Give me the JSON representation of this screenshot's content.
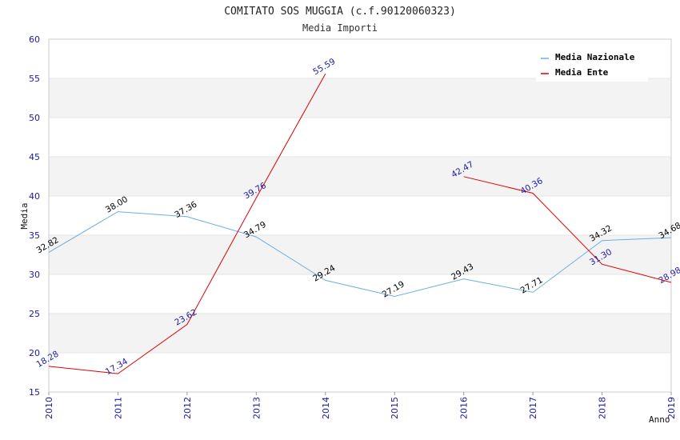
{
  "chart_data": {
    "type": "line",
    "title": "COMITATO SOS MUGGIA (c.f.90120060323)",
    "subtitle": "Media Importi",
    "xlabel": "Anno",
    "ylabel": "Media",
    "ylim": [
      15,
      60
    ],
    "yticks": [
      "15",
      "20",
      "25",
      "30",
      "35",
      "40",
      "45",
      "50",
      "55",
      "60"
    ],
    "grid": true,
    "legend_position": "top-right",
    "x": [
      "2010",
      "2011",
      "2012",
      "2013",
      "2014",
      "2015",
      "2016",
      "2017",
      "2018",
      "2019"
    ],
    "series": [
      {
        "name": "Media Nazionale",
        "color": "#6aaee4",
        "label_color": "#000000",
        "values": [
          32.82,
          38.0,
          37.36,
          34.79,
          29.24,
          27.19,
          29.43,
          27.71,
          34.32,
          34.68
        ],
        "labels": [
          "32.82",
          "38.00",
          "37.36",
          "34.79",
          "29.24",
          "27.19",
          "29.43",
          "27.71",
          "34.32",
          "34.68"
        ]
      },
      {
        "name": "Media Ente",
        "color": "#e00000",
        "label_color": "#1a1aa6",
        "values": [
          18.28,
          17.34,
          23.62,
          39.76,
          55.59,
          null,
          42.47,
          40.36,
          31.3,
          28.98
        ],
        "labels": [
          "18.28",
          "17.34",
          "23.62",
          "39.76",
          "55.59",
          null,
          "42.47",
          "40.36",
          "31.30",
          "28.98"
        ]
      }
    ]
  }
}
